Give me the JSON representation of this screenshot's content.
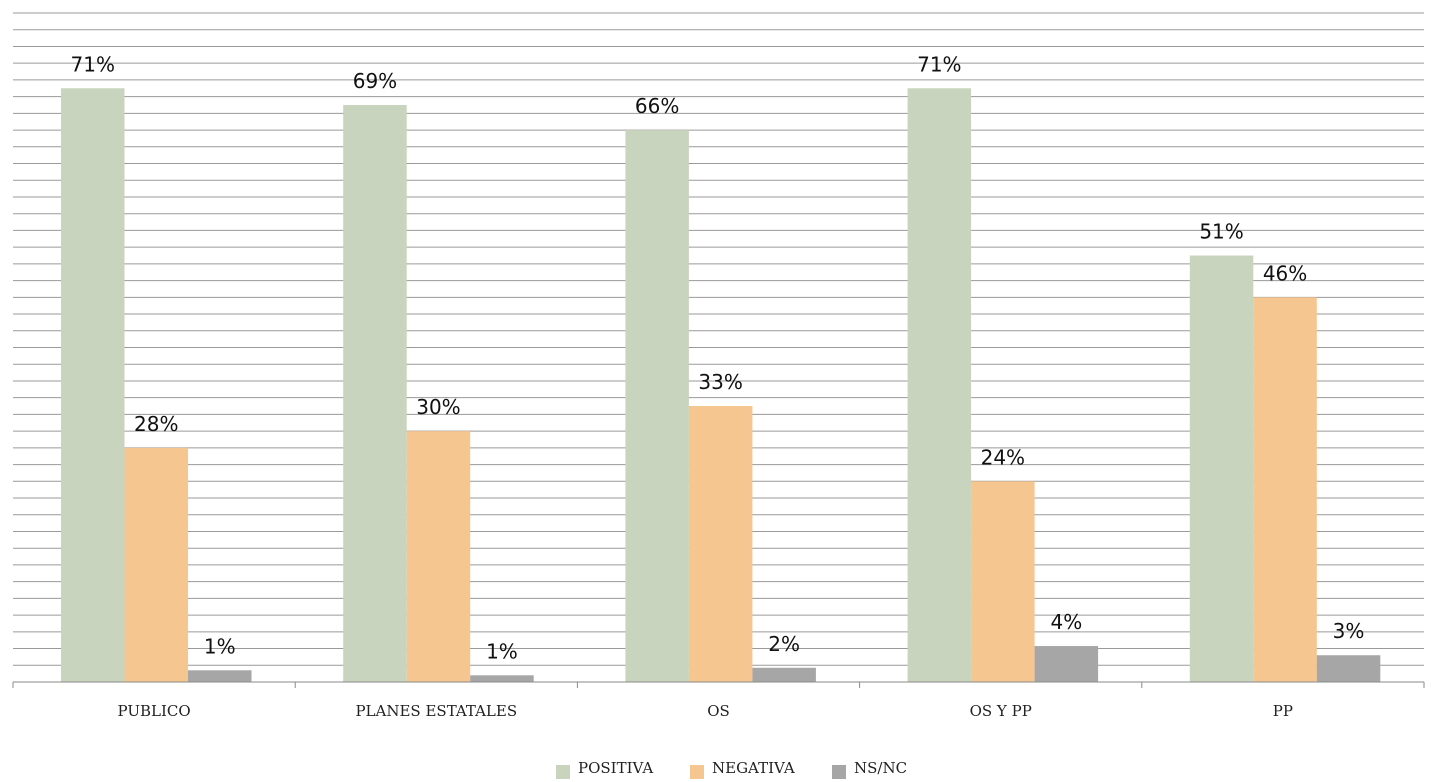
{
  "chart_data": {
    "type": "bar",
    "title": "",
    "xlabel": "",
    "ylabel": "",
    "categories": [
      "PUBLICO",
      "PLANES ESTATALES",
      "OS",
      "OS Y PP",
      "PP"
    ],
    "series": [
      {
        "name": "POSITIVA",
        "color": "#c9d4be",
        "values": [
          71,
          69,
          66,
          71,
          51
        ],
        "labels": [
          "71%",
          "69%",
          "66%",
          "71%",
          "51%"
        ]
      },
      {
        "name": "NEGATIVA",
        "color": "#f5c690",
        "values": [
          28,
          30,
          33,
          24,
          46
        ],
        "labels": [
          "28%",
          "30%",
          "33%",
          "24%",
          "46%"
        ]
      },
      {
        "name": "NS/NC",
        "color": "#a6a6a6",
        "values": [
          1.4,
          0.8,
          1.7,
          4.3,
          3.2
        ],
        "labels": [
          "1%",
          "1%",
          "2%",
          "4%",
          "3%"
        ]
      }
    ],
    "ylim": [
      0,
      80
    ],
    "grid": true,
    "legend_position": "bottom"
  }
}
